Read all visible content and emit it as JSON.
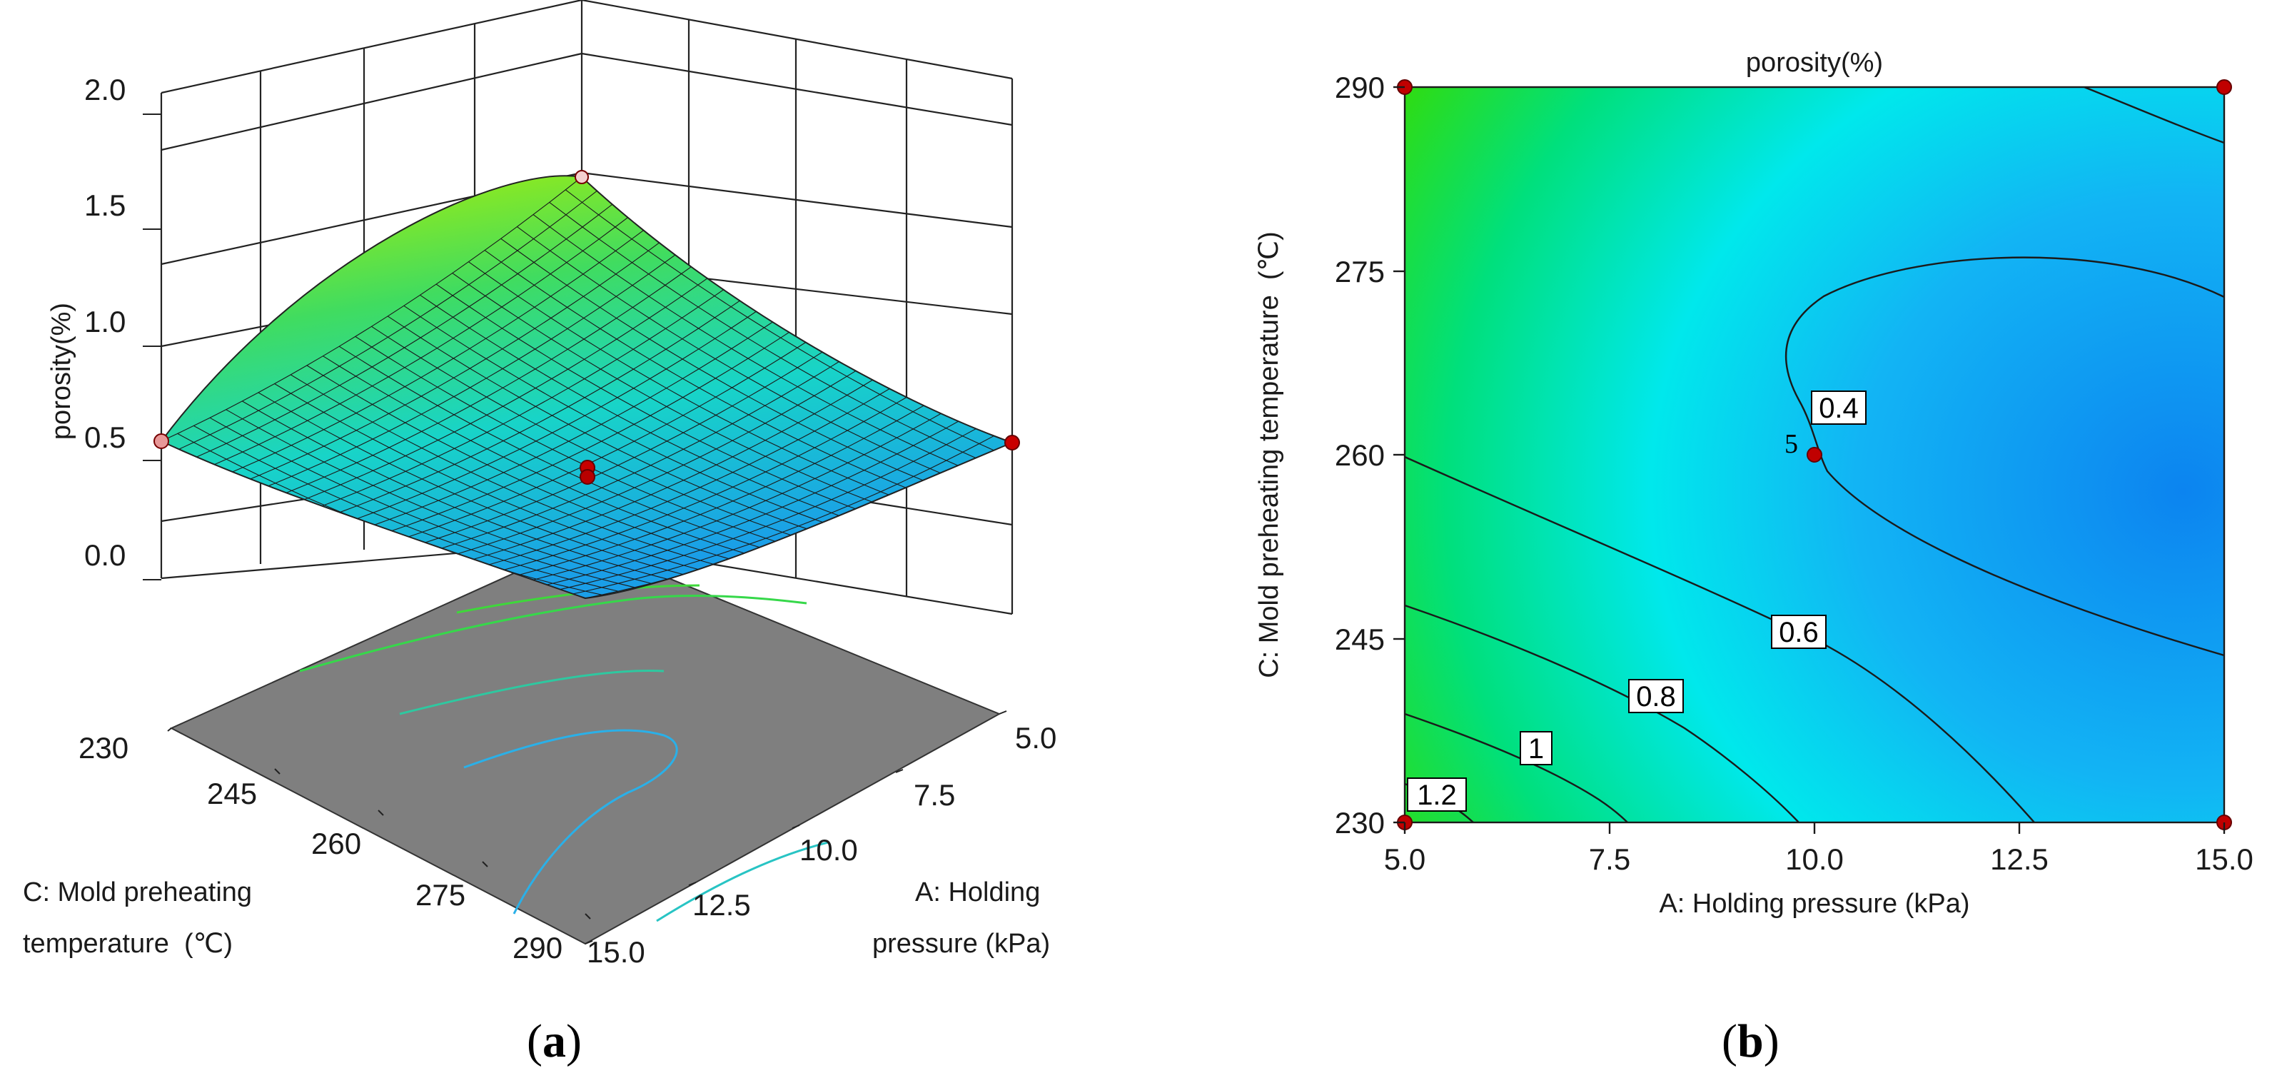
{
  "chart_data": [
    {
      "panel_label": "(a)",
      "panel_letter": "a",
      "type": "surface3d",
      "zlabel": "porosity(%)",
      "xlabel_line1": "A: Holding",
      "xlabel_line2": "pressure (kPa)",
      "ylabel_line1": "C: Mold preheating",
      "ylabel_line2": "temperature  (℃)",
      "z_ticks": [
        "2.0",
        "1.5",
        "1.0",
        "0.5",
        "0.0"
      ],
      "x_ticks": [
        "5.0",
        "7.5",
        "10.0",
        "12.5",
        "15.0"
      ],
      "y_ticks": [
        "230",
        "245",
        "260",
        "275",
        "290"
      ],
      "zlim": [
        0,
        2.0
      ],
      "x_range": [
        5.0,
        15.0
      ],
      "y_range": [
        230,
        290
      ],
      "design_points": [
        {
          "A": 5.0,
          "C": 230,
          "porosity": 1.6
        },
        {
          "A": 15.0,
          "C": 230,
          "porosity": 0.5
        },
        {
          "A": 5.0,
          "C": 290,
          "porosity": 0.5
        },
        {
          "A": 10.0,
          "C": 260,
          "porosity": 0.45
        }
      ],
      "floor_color": "#7f7f7f"
    },
    {
      "panel_label": "(b)",
      "panel_letter": "b",
      "type": "contour",
      "title": "porosity(%)",
      "xlabel": "A: Holding pressure (kPa)",
      "ylabel": "C: Mold preheating temperature  (℃)",
      "x_ticks": [
        "5.0",
        "7.5",
        "10.0",
        "12.5",
        "15.0"
      ],
      "y_ticks": [
        "290",
        "275",
        "260",
        "245",
        "230"
      ],
      "xlim": [
        5.0,
        15.0
      ],
      "ylim": [
        230,
        290
      ],
      "contour_levels": [
        "0.4",
        "0.6",
        "0.8",
        "1",
        "1.2"
      ],
      "center_point_label": "5",
      "design_points": [
        {
          "A": 5.0,
          "C": 290
        },
        {
          "A": 15.0,
          "C": 290
        },
        {
          "A": 5.0,
          "C": 230
        },
        {
          "A": 15.0,
          "C": 230
        },
        {
          "A": 10.0,
          "C": 260
        }
      ],
      "colors": {
        "high": "#c8f000",
        "mid": "#00e0e0",
        "low": "#1090f0",
        "point": "#c00000"
      }
    }
  ]
}
